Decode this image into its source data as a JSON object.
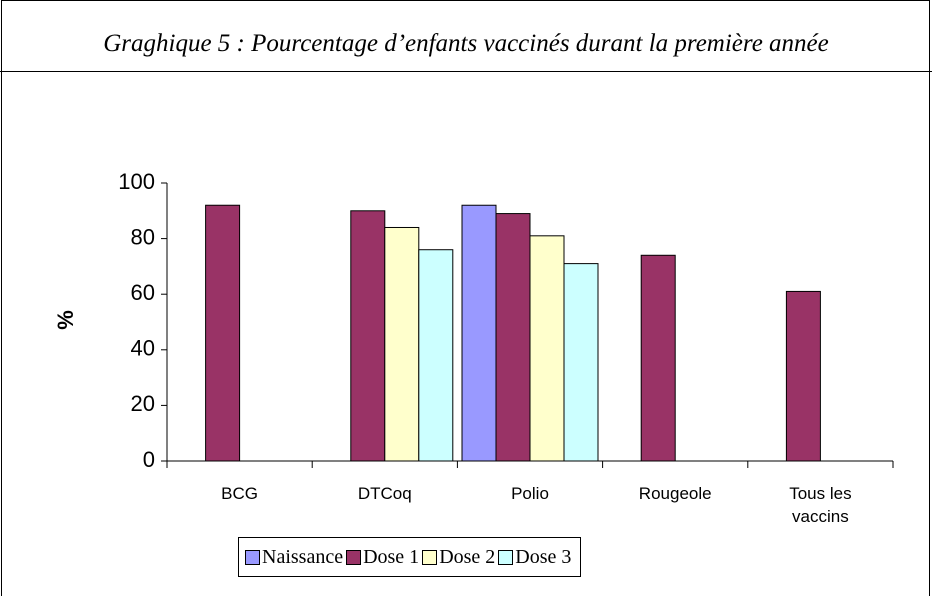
{
  "chart_data": {
    "type": "bar",
    "title": "Graghique 5 : Pourcentage d’enfants vaccinés durant la première année",
    "y_label": "%",
    "categories": [
      "BCG",
      "DTCoq",
      "Polio",
      "Rougeole",
      "Tous les vaccins"
    ],
    "series": [
      {
        "name": "Naissance",
        "color": "#9999ff",
        "values": [
          null,
          null,
          92,
          null,
          null
        ]
      },
      {
        "name": "Dose 1",
        "color": "#993366",
        "values": [
          92,
          90,
          89,
          74,
          61
        ]
      },
      {
        "name": "Dose 2",
        "color": "#ffffcc",
        "values": [
          null,
          84,
          81,
          null,
          null
        ]
      },
      {
        "name": "Dose 3",
        "color": "#ccffff",
        "values": [
          null,
          76,
          71,
          null,
          null
        ]
      }
    ],
    "ylim": [
      0,
      100
    ],
    "yticks": [
      0,
      20,
      40,
      60,
      80,
      100
    ],
    "legend": "bottom"
  }
}
